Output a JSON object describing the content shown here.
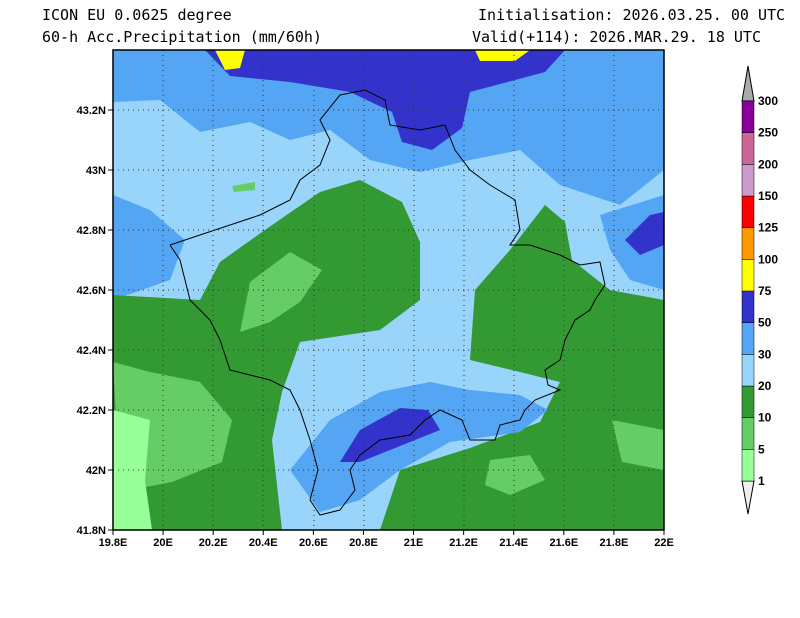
{
  "header": {
    "model": "ICON EU 0.0625 degree",
    "variable": "60-h Acc.Precipitation (mm/60h)",
    "init": "Initialisation: 2026.03.25. 00 UTC",
    "valid": "Valid(+114): 2026.MAR.29. 18 UTC"
  },
  "axes": {
    "lon_labels": [
      "19.8E",
      "20E",
      "20.2E",
      "20.4E",
      "20.6E",
      "20.8E",
      "21E",
      "21.2E",
      "21.4E",
      "21.6E",
      "21.8E",
      "22E"
    ],
    "lat_labels": [
      "41.8N",
      "42N",
      "42.2N",
      "42.4N",
      "42.6N",
      "42.8N",
      "43N",
      "43.2N"
    ]
  },
  "legend": {
    "labels": [
      "1",
      "5",
      "10",
      "20",
      "30",
      "50",
      "75",
      "100",
      "125",
      "150",
      "200",
      "250",
      "300"
    ],
    "colors": [
      "#99ff99",
      "#66cc66",
      "#339933",
      "#99d5fa",
      "#55a5f5",
      "#3333cc",
      "#ffff00",
      "#ff9900",
      "#ff0000",
      "#cc99cc",
      "#cc6699",
      "#880099"
    ],
    "under_color": "#eeeeee",
    "over_color": "#aaaaaa"
  }
}
